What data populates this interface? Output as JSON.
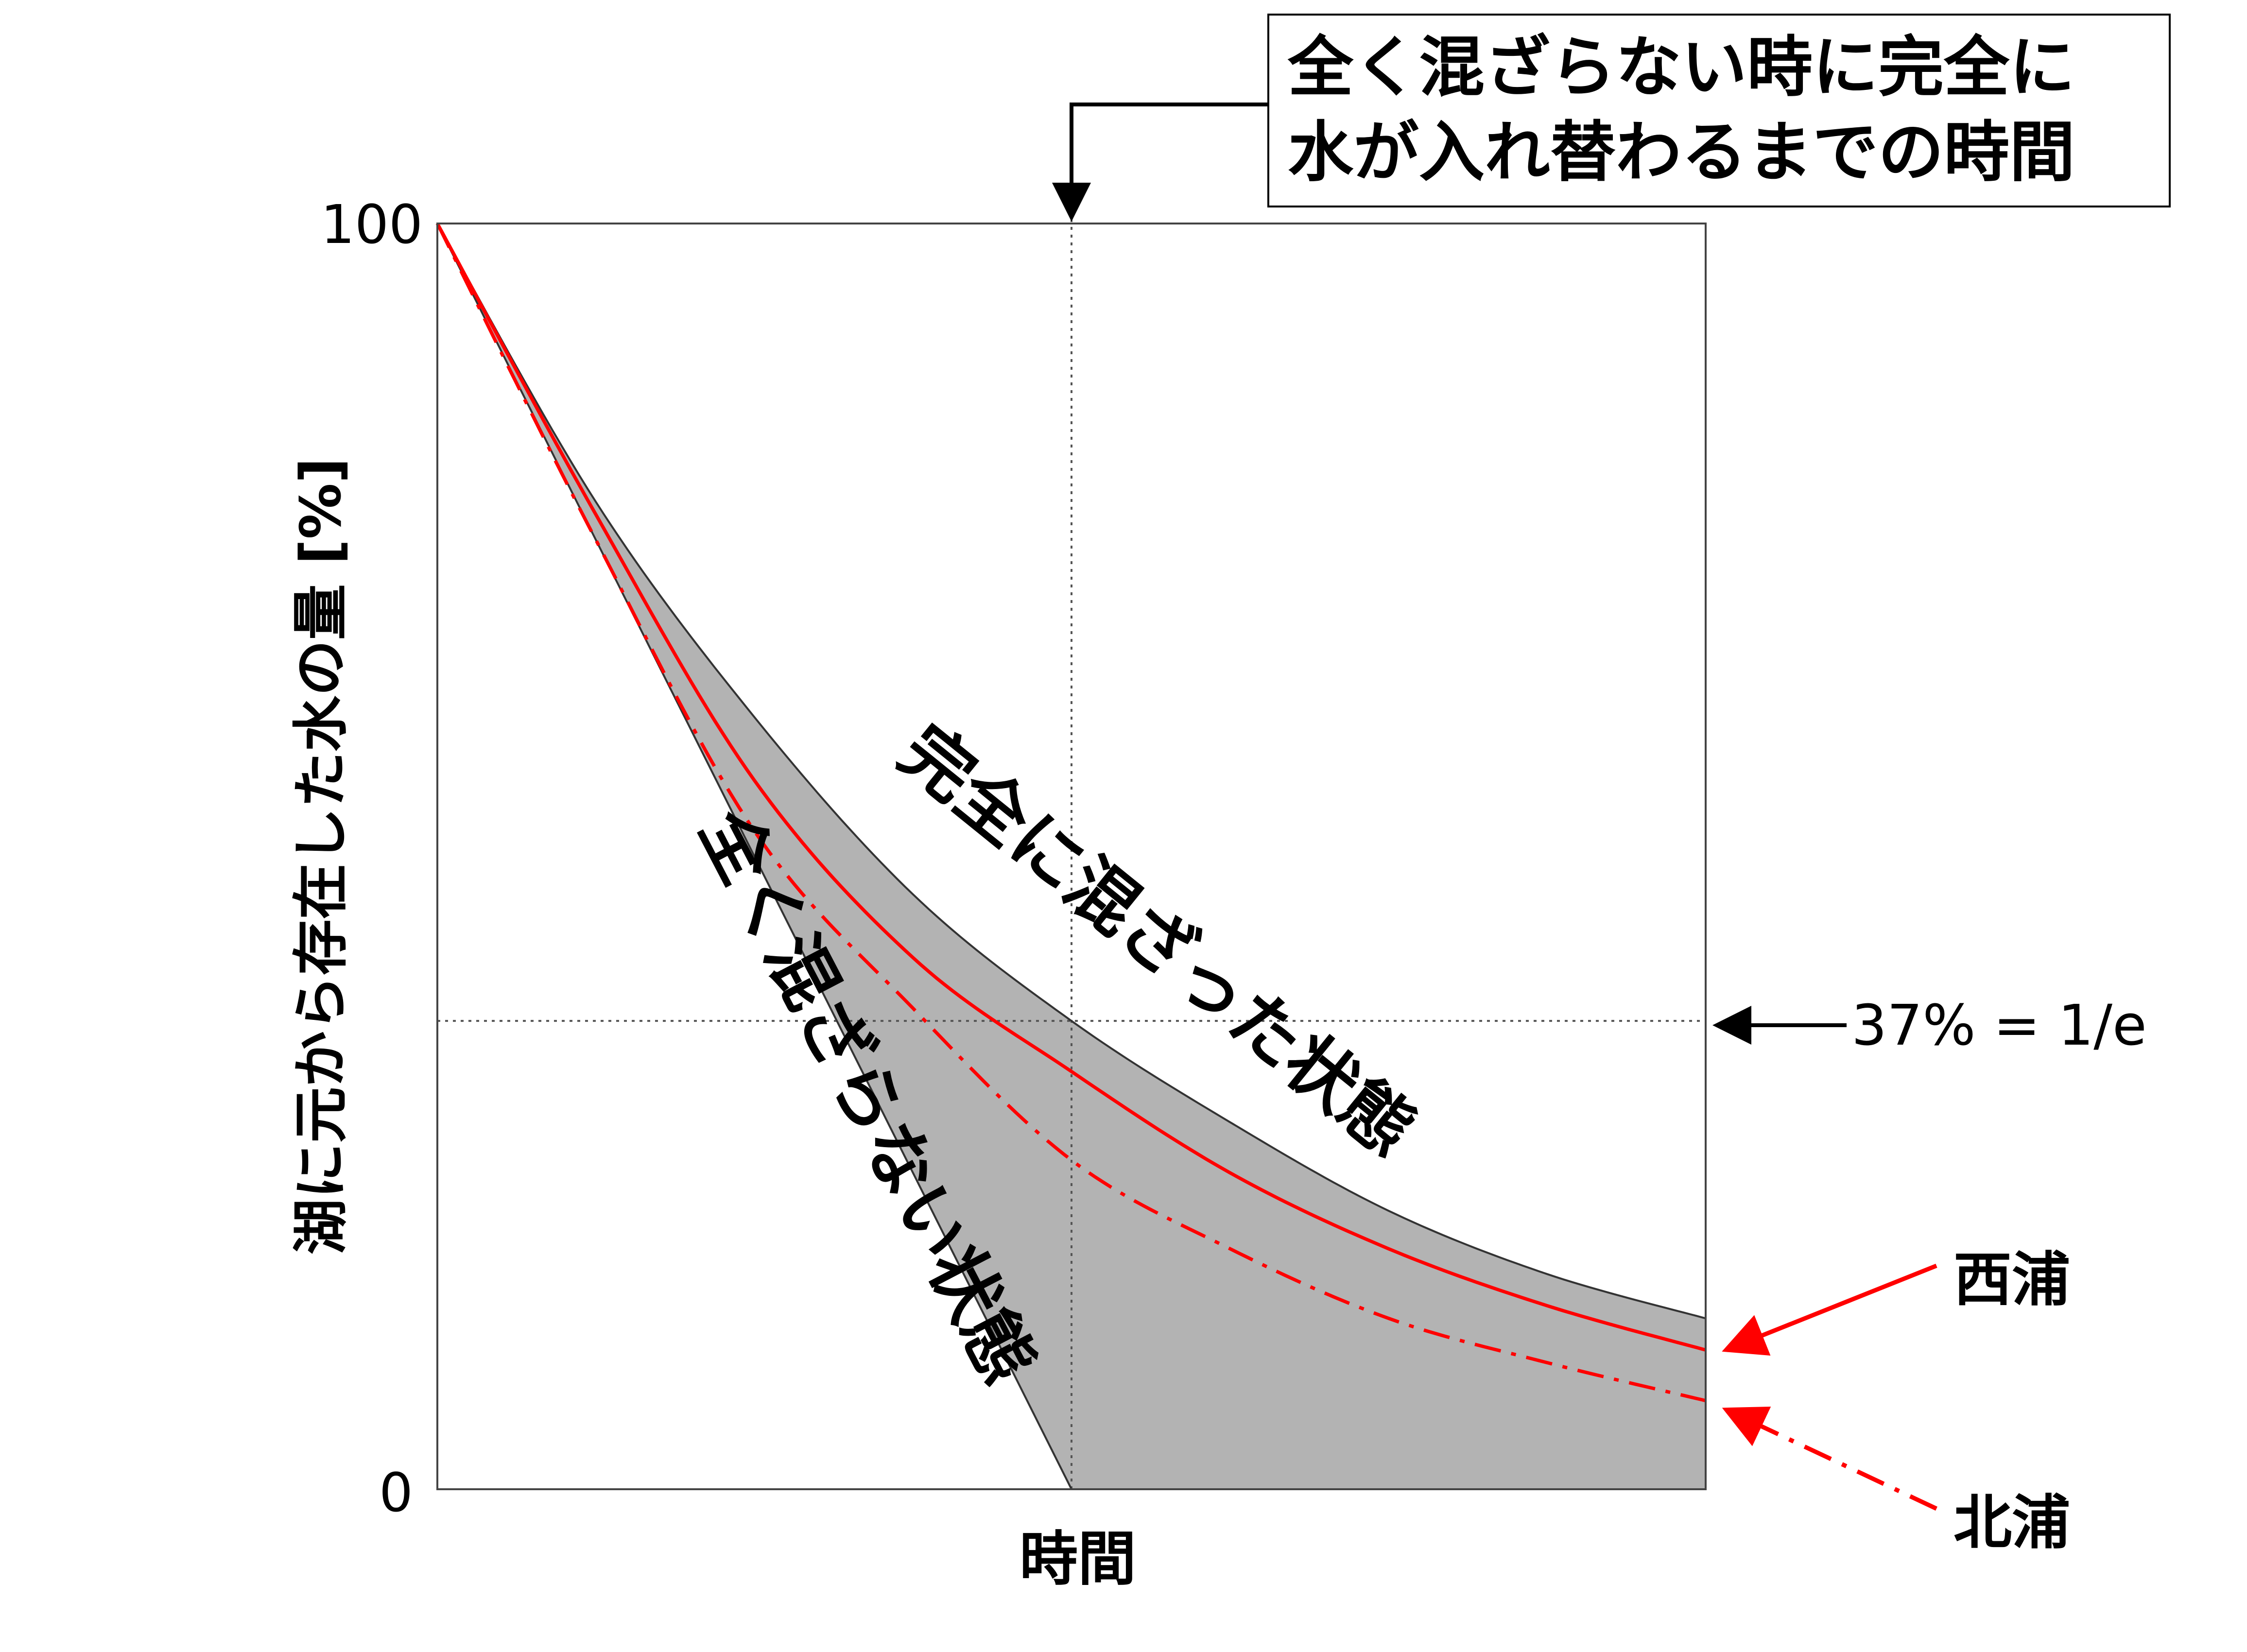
{
  "chart_data": {
    "type": "line",
    "xlabel": "時間",
    "ylabel": "湖に元から存在した水の量 [%]",
    "y_ticks": [
      "100",
      "0"
    ],
    "ylim": [
      0,
      100
    ],
    "xlim": [
      0,
      2
    ],
    "grid": false,
    "series": [
      {
        "name": "全く混ざらない状態",
        "style": "solid-black",
        "x": [
          0,
          1
        ],
        "y": [
          100,
          0
        ]
      },
      {
        "name": "完全に混ざった状態",
        "style": "solid-black",
        "x": [
          0,
          0.25,
          0.5,
          0.75,
          1.0,
          1.25,
          1.5,
          1.75,
          2.0
        ],
        "y": [
          100,
          78,
          61,
          47,
          37,
          29,
          22,
          17,
          13.5
        ]
      },
      {
        "name": "西浦",
        "style": "solid-red",
        "x": [
          0,
          0.25,
          0.5,
          0.75,
          1.0,
          1.25,
          1.5,
          1.75,
          2.0
        ],
        "y": [
          100,
          77,
          56,
          42,
          33,
          25,
          19,
          14.5,
          11
        ]
      },
      {
        "name": "北浦",
        "style": "dashdot-red",
        "x": [
          0,
          0.25,
          0.5,
          0.75,
          1.0,
          1.25,
          1.5,
          1.75,
          2.0
        ],
        "y": [
          100,
          75,
          52,
          38,
          26,
          19,
          13.5,
          10,
          7
        ]
      }
    ],
    "reference_lines": [
      {
        "type": "horizontal",
        "y": 37
      },
      {
        "type": "vertical",
        "x": 1
      }
    ],
    "annotations": {
      "top_box_line1": "全く混ざらない時に完全に",
      "top_box_line2": "水が入れ替わるまでの時間",
      "e_label": "37% = 1/e",
      "nishiura_label": "西浦",
      "kitaura_label": "北浦",
      "mixed_label": "完全に混ざった状態",
      "unmixed_label": "全く混ざらない状態"
    },
    "colors": {
      "shade": "#b3b3b3",
      "red": "#ff0000",
      "black": "#000000"
    }
  }
}
